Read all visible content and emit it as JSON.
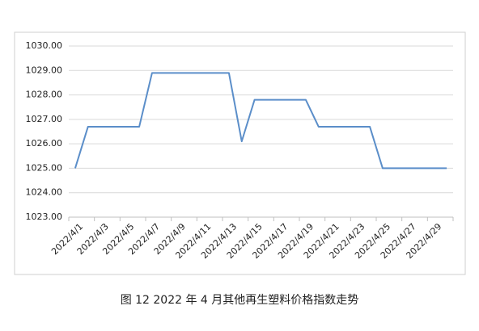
{
  "chart_data": {
    "type": "line",
    "caption": "图 12  2022 年 4 月其他再生塑料价格指数走势",
    "categories": [
      "2022/4/1",
      null,
      "2022/4/3",
      null,
      "2022/4/5",
      null,
      "2022/4/7",
      null,
      "2022/4/9",
      null,
      "2022/4/11",
      null,
      "2022/4/13",
      null,
      "2022/4/15",
      null,
      "2022/4/17",
      null,
      "2022/4/19",
      null,
      "2022/4/21",
      null,
      "2022/4/23",
      null,
      "2022/4/25",
      null,
      "2022/4/27",
      null,
      "2022/4/29",
      null
    ],
    "values": [
      1025.0,
      1026.7,
      1026.7,
      1026.7,
      1026.7,
      1026.7,
      1028.9,
      1028.9,
      1028.9,
      1028.9,
      1028.9,
      1028.9,
      1028.9,
      1026.1,
      1027.8,
      1027.8,
      1027.8,
      1027.8,
      1027.8,
      1026.7,
      1026.7,
      1026.7,
      1026.7,
      1026.7,
      1025.0,
      1025.0,
      1025.0,
      1025.0,
      1025.0,
      1025.0
    ],
    "color": "#5b8ec9",
    "ylim": [
      1023,
      1030
    ],
    "yticks": [
      {
        "value": 1023,
        "label": "1023.00"
      },
      {
        "value": 1024,
        "label": "1024.00"
      },
      {
        "value": 1025,
        "label": "1025.00"
      },
      {
        "value": 1026,
        "label": "1026.00"
      },
      {
        "value": 1027,
        "label": "1027.00"
      },
      {
        "value": 1028,
        "label": "1028.00"
      },
      {
        "value": 1029,
        "label": "1029.00"
      },
      {
        "value": 1030,
        "label": "1030.00"
      }
    ],
    "grid": true
  }
}
